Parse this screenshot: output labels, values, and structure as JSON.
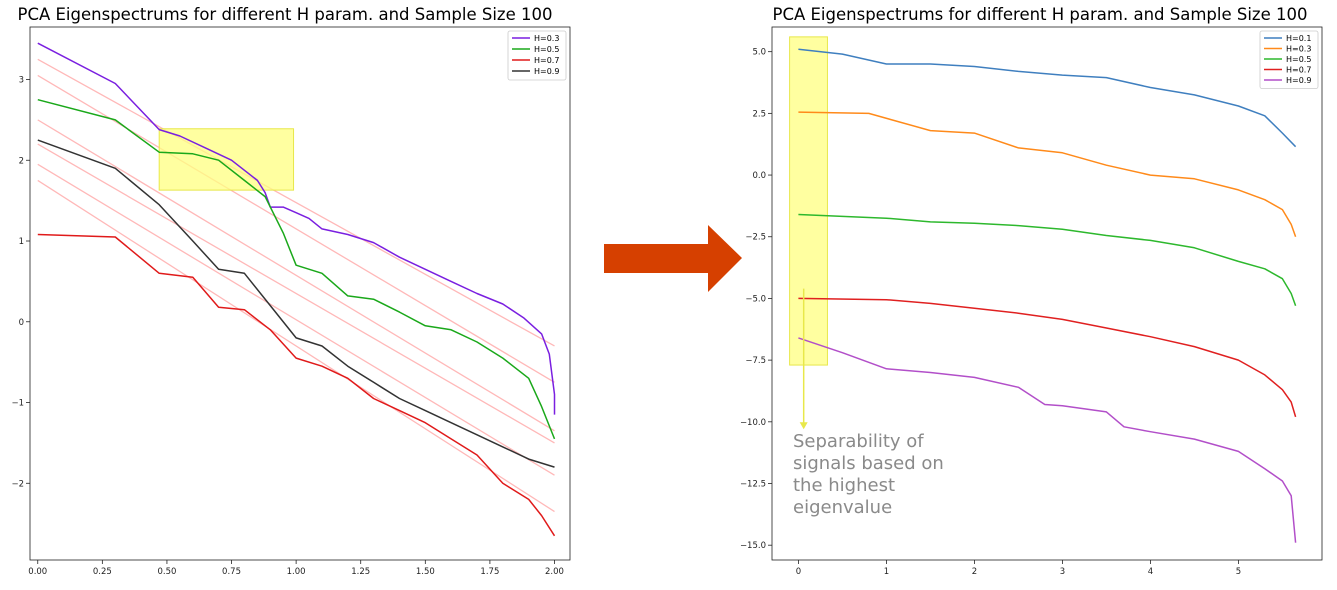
{
  "colors": {
    "arrow": "#d64000",
    "highlight": "#ffff80",
    "highlight_stroke": "#e8e84a",
    "trend": "#ffb8b8"
  },
  "annotation": {
    "note_lines": [
      "Separability of",
      "signals based on",
      "the highest",
      "eigenvalue"
    ]
  },
  "chart_data": [
    {
      "type": "line",
      "title": "PCA Eigenspectrums for different H param. and Sample Size 100",
      "xlabel": "",
      "ylabel": "",
      "xlim": [
        -0.03,
        2.06
      ],
      "ylim": [
        -2.95,
        3.65
      ],
      "xticks": [
        0.0,
        0.25,
        0.5,
        0.75,
        1.0,
        1.25,
        1.5,
        1.75,
        2.0
      ],
      "xtick_labels": [
        "0.00",
        "0.25",
        "0.50",
        "0.75",
        "1.00",
        "1.25",
        "1.50",
        "1.75",
        "2.00"
      ],
      "yticks": [
        -2,
        -1,
        0,
        1,
        2,
        3
      ],
      "ytick_labels": [
        "−2",
        "−1",
        "0",
        "1",
        "2",
        "3"
      ],
      "legend_position": "top-right",
      "highlight_box": {
        "x": [
          0.47,
          0.99
        ],
        "y": [
          1.63,
          2.39
        ]
      },
      "trend_lines": [
        {
          "x": [
            0.0,
            2.0
          ],
          "y": [
            3.25,
            -0.3
          ]
        },
        {
          "x": [
            0.0,
            2.0
          ],
          "y": [
            3.05,
            -0.75
          ]
        },
        {
          "x": [
            0.0,
            2.0
          ],
          "y": [
            2.5,
            -1.35
          ]
        },
        {
          "x": [
            0.0,
            2.0
          ],
          "y": [
            2.2,
            -1.5
          ]
        },
        {
          "x": [
            0.0,
            2.0
          ],
          "y": [
            1.95,
            -1.9
          ]
        },
        {
          "x": [
            0.0,
            2.0
          ],
          "y": [
            1.75,
            -2.35
          ]
        }
      ],
      "series": [
        {
          "name": "H=0.3",
          "color": "#7a1fe0",
          "x": [
            0.0,
            0.3,
            0.47,
            0.55,
            0.65,
            0.75,
            0.85,
            0.88,
            0.9,
            0.95,
            1.0,
            1.05,
            1.1,
            1.2,
            1.3,
            1.4,
            1.5,
            1.6,
            1.7,
            1.8,
            1.88,
            1.95,
            1.98,
            2.0,
            2.0
          ],
          "y": [
            3.45,
            2.95,
            2.38,
            2.3,
            2.15,
            2.0,
            1.75,
            1.6,
            1.42,
            1.42,
            1.35,
            1.28,
            1.15,
            1.08,
            0.98,
            0.8,
            0.65,
            0.5,
            0.35,
            0.22,
            0.05,
            -0.15,
            -0.4,
            -0.9,
            -1.15
          ]
        },
        {
          "name": "H=0.5",
          "color": "#1aa81a",
          "x": [
            0.0,
            0.3,
            0.47,
            0.6,
            0.7,
            0.8,
            0.88,
            0.95,
            1.0,
            1.1,
            1.2,
            1.3,
            1.4,
            1.5,
            1.6,
            1.7,
            1.8,
            1.9,
            1.95,
            2.0
          ],
          "y": [
            2.75,
            2.5,
            2.1,
            2.08,
            2.0,
            1.75,
            1.55,
            1.1,
            0.7,
            0.6,
            0.32,
            0.28,
            0.12,
            -0.05,
            -0.1,
            -0.25,
            -0.45,
            -0.7,
            -1.05,
            -1.45
          ]
        },
        {
          "name": "H=0.7",
          "color": "#e01a1a",
          "x": [
            0.0,
            0.3,
            0.47,
            0.6,
            0.7,
            0.8,
            0.9,
            1.0,
            1.1,
            1.2,
            1.3,
            1.4,
            1.5,
            1.6,
            1.7,
            1.8,
            1.9,
            1.95,
            2.0
          ],
          "y": [
            1.08,
            1.05,
            0.6,
            0.55,
            0.18,
            0.15,
            -0.1,
            -0.45,
            -0.55,
            -0.7,
            -0.95,
            -1.1,
            -1.25,
            -1.45,
            -1.65,
            -2.0,
            -2.2,
            -2.4,
            -2.65
          ]
        },
        {
          "name": "H=0.9",
          "color": "#333333",
          "x": [
            0.0,
            0.3,
            0.47,
            0.6,
            0.7,
            0.8,
            0.9,
            1.0,
            1.1,
            1.2,
            1.3,
            1.4,
            1.5,
            1.6,
            1.7,
            1.8,
            1.9,
            2.0
          ],
          "y": [
            2.25,
            1.9,
            1.45,
            1.0,
            0.65,
            0.6,
            0.2,
            -0.2,
            -0.3,
            -0.55,
            -0.75,
            -0.95,
            -1.1,
            -1.25,
            -1.4,
            -1.55,
            -1.7,
            -1.8
          ]
        }
      ]
    },
    {
      "type": "line",
      "title": "PCA Eigenspectrums for different H param. and Sample Size 100",
      "xlabel": "",
      "ylabel": "",
      "xlim": [
        -0.3,
        5.95
      ],
      "ylim": [
        -15.6,
        6.0
      ],
      "xticks": [
        0,
        1,
        2,
        3,
        4,
        5
      ],
      "xtick_labels": [
        "0",
        "1",
        "2",
        "3",
        "4",
        "5"
      ],
      "yticks": [
        5.0,
        2.5,
        0.0,
        -2.5,
        -5.0,
        -7.5,
        -10.0,
        -12.5,
        -15.0
      ],
      "ytick_labels": [
        "5.0",
        "2.5",
        "0.0",
        "−2.5",
        "−5.0",
        "−7.5",
        "−10.0",
        "−12.5",
        "−15.0"
      ],
      "legend_position": "top-right",
      "highlight_box": {
        "x": [
          -0.1,
          0.33
        ],
        "y": [
          -7.7,
          5.6
        ]
      },
      "note_arrow": {
        "x": 0.06,
        "y": [
          -4.6,
          -10.3
        ]
      },
      "series": [
        {
          "name": "H=0.1",
          "color": "#3f7fbf",
          "x": [
            0.0,
            0.5,
            1.0,
            1.5,
            2.0,
            2.5,
            3.0,
            3.5,
            4.0,
            4.5,
            5.0,
            5.3,
            5.5,
            5.65
          ],
          "y": [
            5.1,
            4.9,
            4.5,
            4.5,
            4.4,
            4.2,
            4.05,
            3.95,
            3.55,
            3.25,
            2.8,
            2.4,
            1.7,
            1.15
          ]
        },
        {
          "name": "H=0.3",
          "color": "#ff8a1a",
          "x": [
            0.0,
            0.8,
            1.5,
            2.0,
            2.5,
            3.0,
            3.5,
            4.0,
            4.5,
            5.0,
            5.3,
            5.5,
            5.6,
            5.65
          ],
          "y": [
            2.55,
            2.5,
            1.8,
            1.7,
            1.1,
            0.9,
            0.4,
            0.0,
            -0.15,
            -0.6,
            -1.0,
            -1.4,
            -2.0,
            -2.5
          ]
        },
        {
          "name": "H=0.5",
          "color": "#2db82d",
          "x": [
            0.0,
            1.0,
            1.5,
            2.0,
            2.5,
            3.0,
            3.5,
            4.0,
            4.5,
            5.0,
            5.3,
            5.5,
            5.6,
            5.65
          ],
          "y": [
            -1.6,
            -1.75,
            -1.9,
            -1.95,
            -2.05,
            -2.2,
            -2.45,
            -2.65,
            -2.95,
            -3.5,
            -3.8,
            -4.2,
            -4.8,
            -5.3
          ]
        },
        {
          "name": "H=0.7",
          "color": "#e02020",
          "x": [
            0.0,
            1.0,
            1.5,
            2.0,
            2.5,
            3.0,
            3.5,
            4.0,
            4.5,
            5.0,
            5.3,
            5.5,
            5.6,
            5.65
          ],
          "y": [
            -5.0,
            -5.05,
            -5.2,
            -5.4,
            -5.6,
            -5.85,
            -6.2,
            -6.55,
            -6.95,
            -7.5,
            -8.1,
            -8.7,
            -9.2,
            -9.8
          ]
        },
        {
          "name": "H=0.9",
          "color": "#b24fc9",
          "x": [
            0.0,
            0.5,
            1.0,
            1.5,
            2.0,
            2.5,
            2.8,
            3.0,
            3.5,
            3.7,
            4.0,
            4.5,
            5.0,
            5.3,
            5.5,
            5.6,
            5.65
          ],
          "y": [
            -6.6,
            -7.2,
            -7.85,
            -8.0,
            -8.2,
            -8.6,
            -9.3,
            -9.35,
            -9.6,
            -10.2,
            -10.4,
            -10.7,
            -11.2,
            -11.9,
            -12.4,
            -13.0,
            -14.9
          ]
        }
      ]
    }
  ]
}
